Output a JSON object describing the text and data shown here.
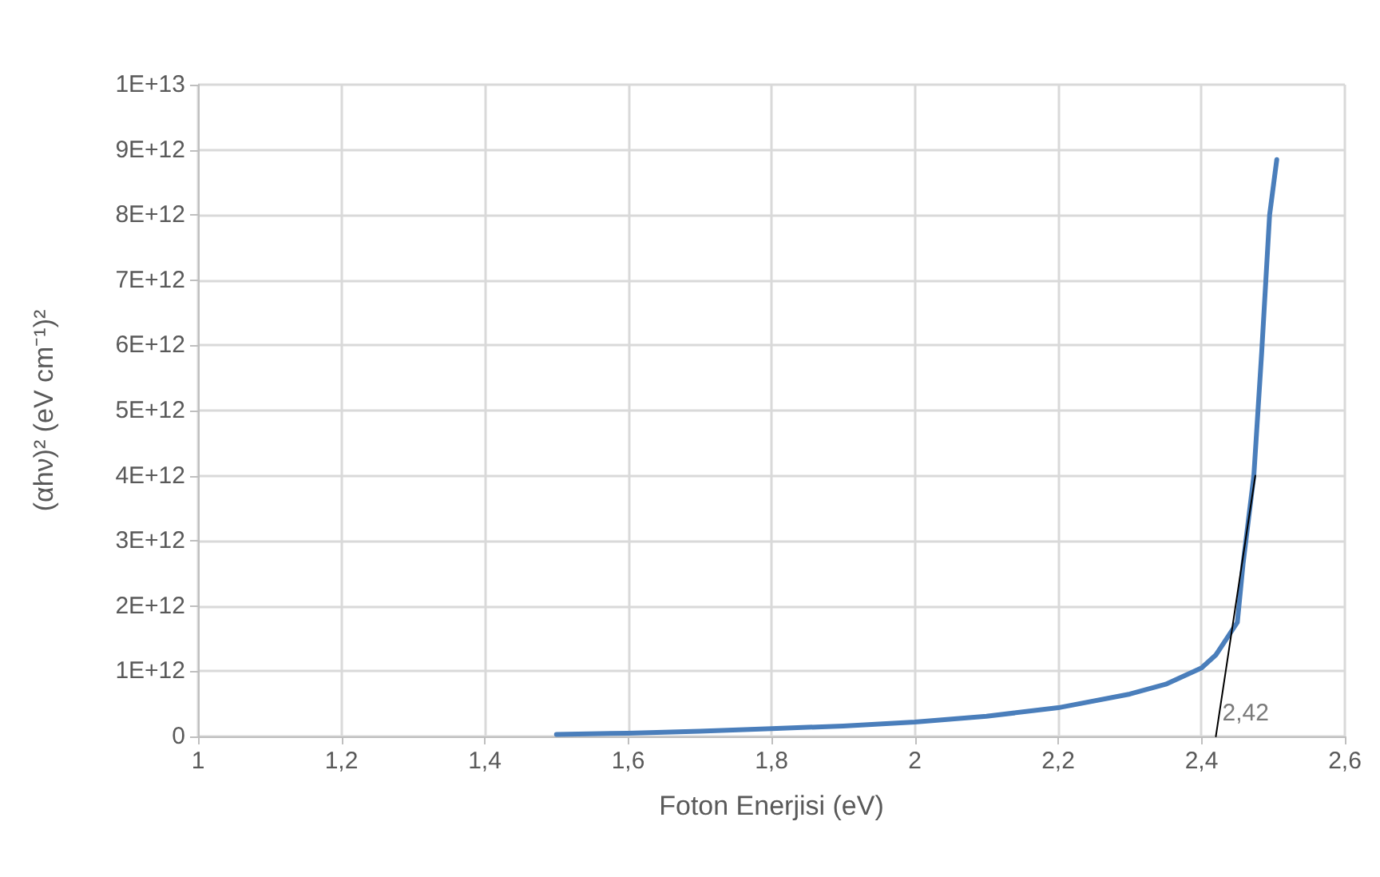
{
  "chart_data": {
    "type": "line",
    "xlabel": "Foton Enerjisi (eV)",
    "ylabel": "(αhν)² (eV cm⁻¹)²",
    "xlim": [
      1,
      2.6
    ],
    "xticks": [
      1,
      {
        "value": 1.2,
        "label": "1,2"
      },
      {
        "value": 1.4,
        "label": "1,4"
      },
      {
        "value": 1.6,
        "label": "1,6"
      },
      {
        "value": 1.8,
        "label": "1,8"
      },
      2,
      {
        "value": 2.2,
        "label": "2,2"
      },
      {
        "value": 2.4,
        "label": "2,4"
      },
      {
        "value": 2.6,
        "label": "2,6"
      }
    ],
    "ylim": [
      0,
      10000000000000.0
    ],
    "yticks": [
      0,
      {
        "value": 1000000000000.0,
        "label": "1E+12"
      },
      {
        "value": 2000000000000.0,
        "label": "2E+12"
      },
      {
        "value": 3000000000000.0,
        "label": "3E+12"
      },
      {
        "value": 4000000000000.0,
        "label": "4E+12"
      },
      {
        "value": 5000000000000.0,
        "label": "5E+12"
      },
      {
        "value": 6000000000000.0,
        "label": "6E+12"
      },
      {
        "value": 7000000000000.0,
        "label": "7E+12"
      },
      {
        "value": 8000000000000.0,
        "label": "8E+12"
      },
      {
        "value": 9000000000000.0,
        "label": "9E+12"
      },
      {
        "value": 10000000000000.0,
        "label": "1E+13"
      }
    ],
    "series": [
      {
        "color": "#4a7ebb",
        "x": [
          1.5,
          1.6,
          1.7,
          1.8,
          1.9,
          2.0,
          2.1,
          2.2,
          2.3,
          2.35,
          2.4,
          2.42,
          2.45,
          2.458,
          2.473,
          2.484,
          2.495,
          2.505
        ],
        "values": [
          30000000000.0,
          50000000000.0,
          80000000000.0,
          120000000000.0,
          160000000000.0,
          220000000000.0,
          310000000000.0,
          440000000000.0,
          650000000000.0,
          800000000000.0,
          1050000000000.0,
          1250000000000.0,
          1750000000000.0,
          2650000000000.0,
          4000000000000.0,
          5900000000000.0,
          8000000000000.0,
          8850000000000.0
        ]
      },
      {
        "type": "line",
        "color": "#000000",
        "x": [
          2.42,
          2.475
        ],
        "values": [
          0,
          4000000000000.0
        ]
      }
    ],
    "annotations": [
      {
        "text": "2,42",
        "x": 2.42,
        "y": 0
      }
    ],
    "grid": true,
    "marker": "none"
  }
}
